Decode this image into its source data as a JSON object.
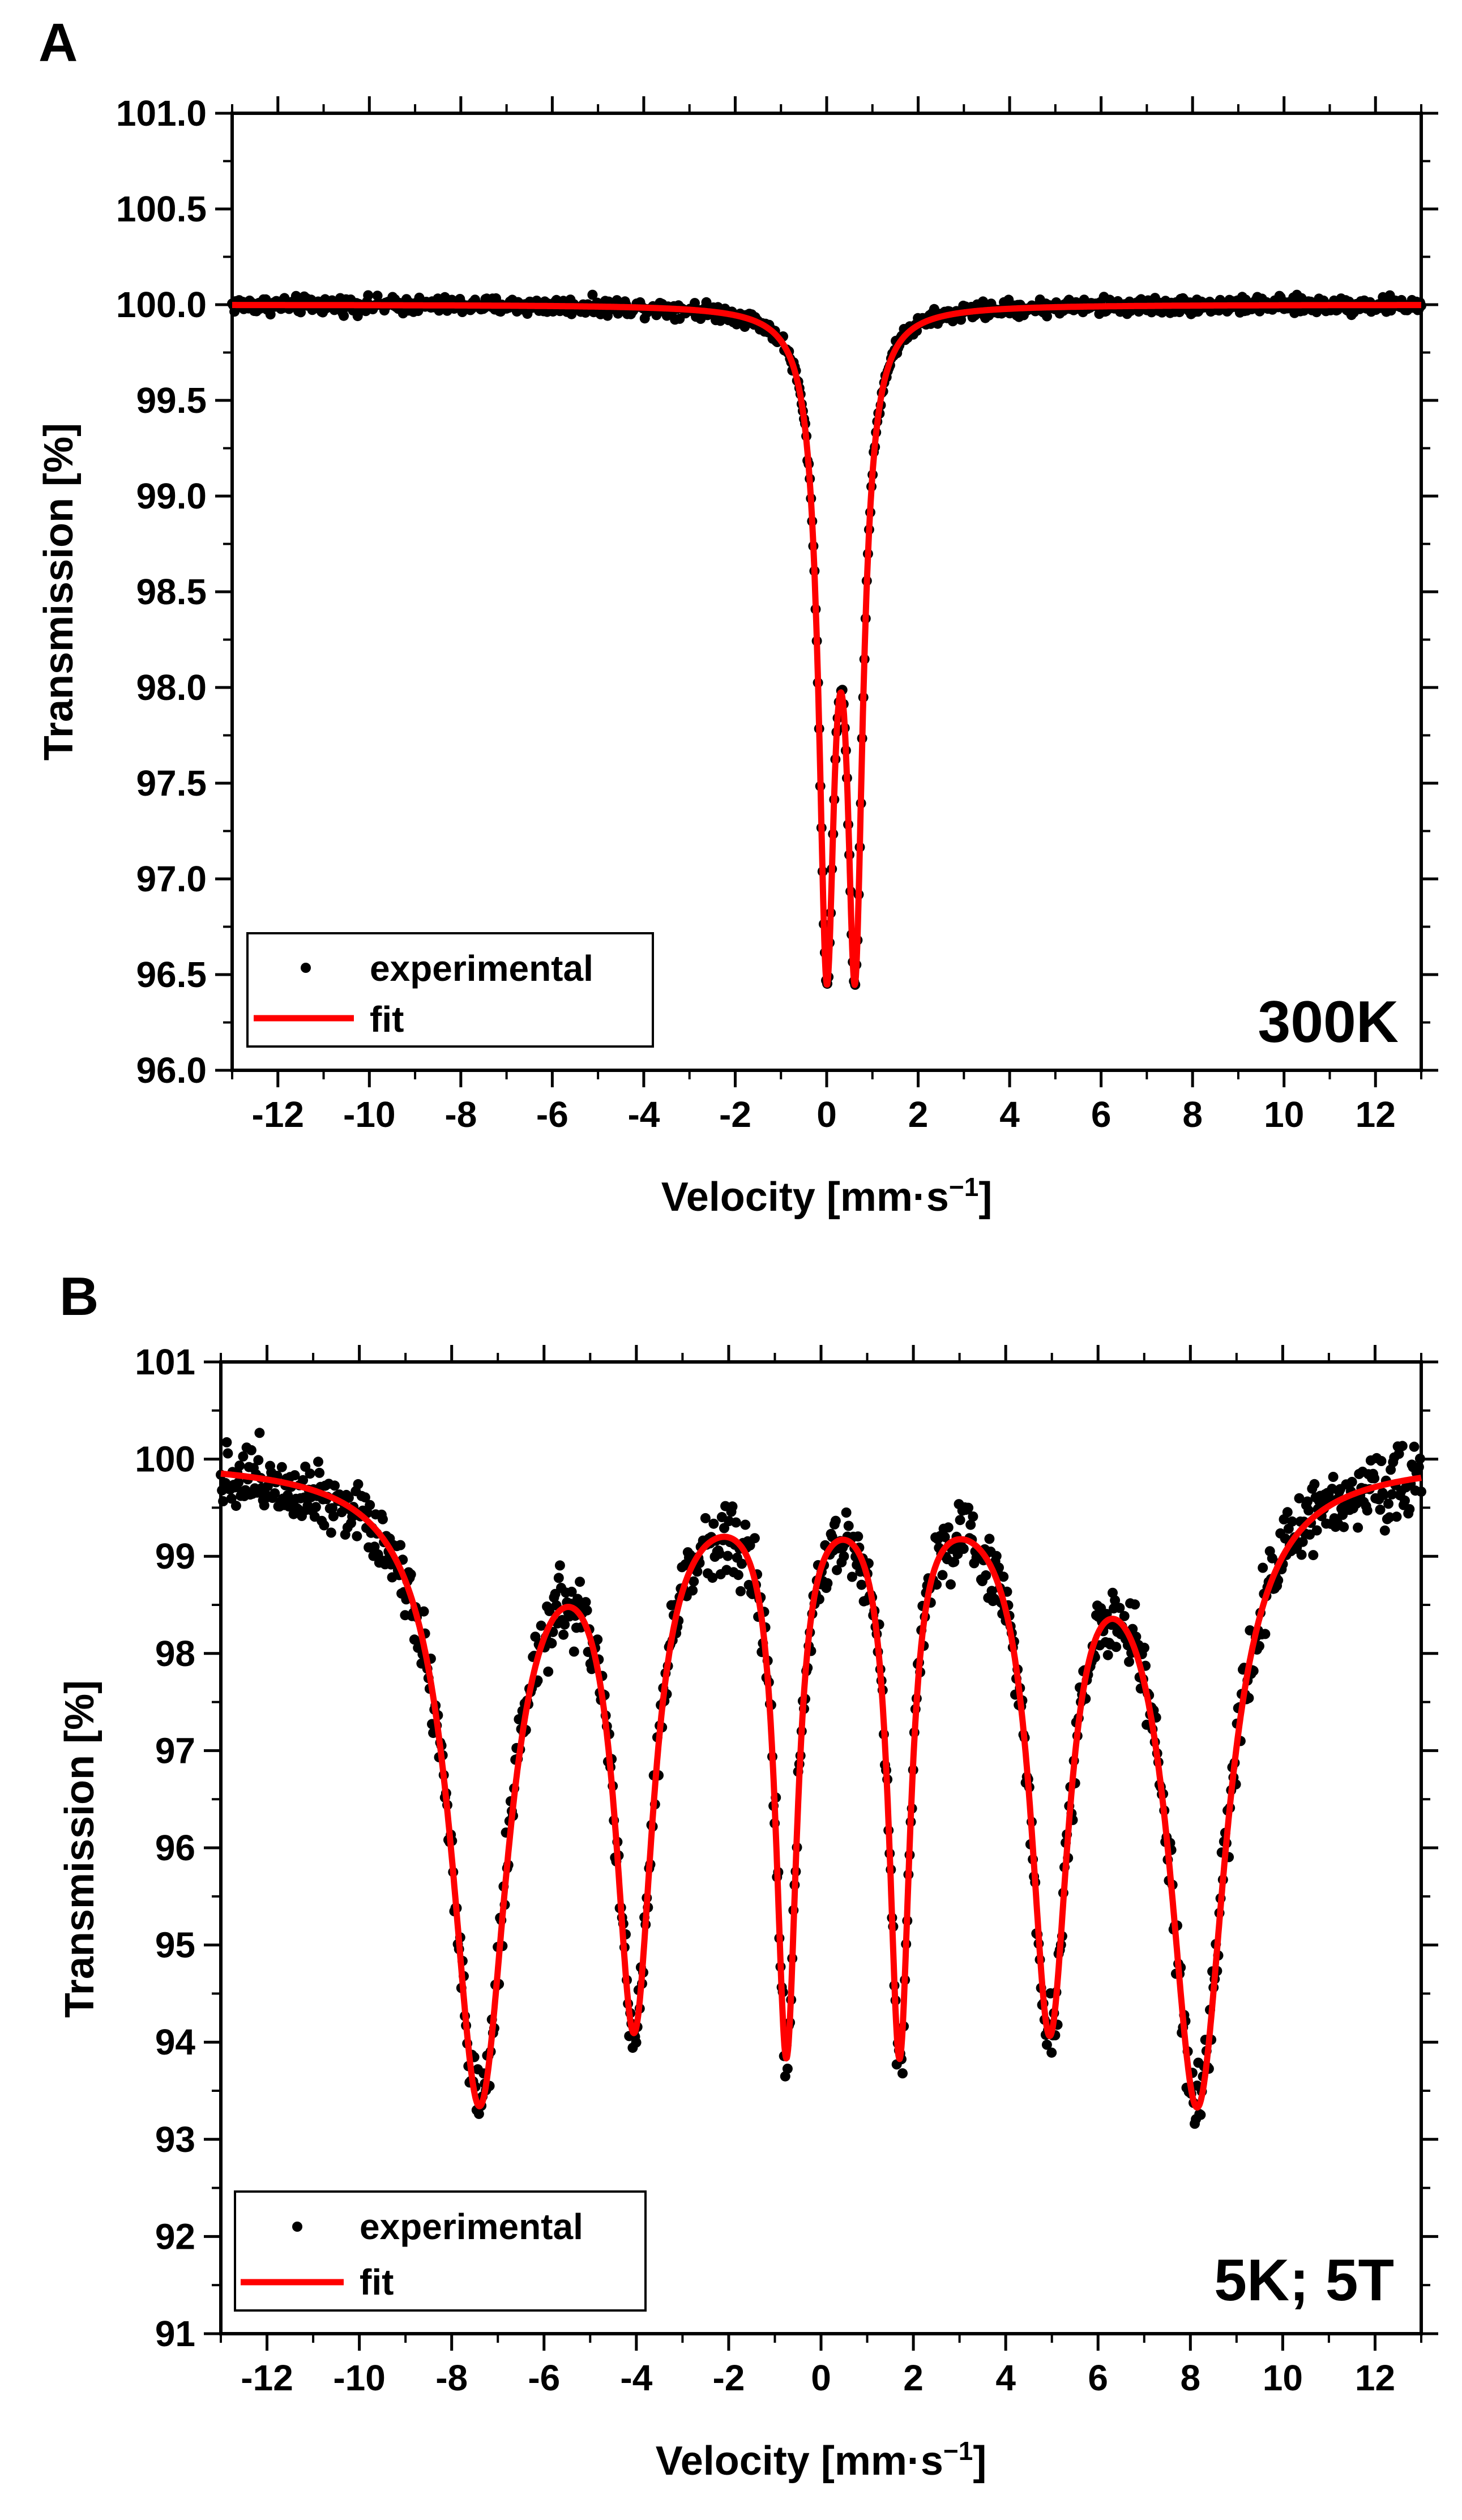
{
  "chart_data": [
    {
      "type": "scatter",
      "panel": "A",
      "annotation": "300K",
      "xlabel": "Velocity [mm·s",
      "xlabel_sup": "−1",
      "xlabel_close": "]",
      "ylabel": "Transmission [%]",
      "xlim": [
        -13,
        13
      ],
      "ylim": [
        96.0,
        101.0
      ],
      "xticks": [
        -12,
        -10,
        -8,
        -6,
        -4,
        -2,
        0,
        2,
        4,
        6,
        8,
        10,
        12
      ],
      "yticks": [
        96.0,
        96.5,
        97.0,
        97.5,
        98.0,
        98.5,
        99.0,
        99.5,
        100.0,
        100.5,
        101.0
      ],
      "ytick_decimals": 1,
      "legend": {
        "position": "bottom-left",
        "entries": [
          "experimental",
          "fit"
        ]
      },
      "series": [
        {
          "name": "experimental",
          "style": "points",
          "color": "#000000",
          "note": "noisy points following fit"
        },
        {
          "name": "fit",
          "style": "line",
          "color": "#ff0000",
          "model": {
            "baseline": 100.0,
            "lines": [
              {
                "position": 0.0,
                "depth": 3.22,
                "hwhm": 0.21
              },
              {
                "position": 0.62,
                "depth": 3.22,
                "hwhm": 0.21
              }
            ]
          }
        }
      ],
      "noise_amplitude": 0.035
    },
    {
      "type": "scatter",
      "panel": "B",
      "annotation": "5K; 5T",
      "xlabel": "Velocity [mm·s",
      "xlabel_sup": "−1",
      "xlabel_close": "]",
      "ylabel": "Transmission [%]",
      "xlim": [
        -13,
        13
      ],
      "ylim": [
        91,
        101
      ],
      "xticks": [
        -12,
        -10,
        -8,
        -6,
        -4,
        -2,
        0,
        2,
        4,
        6,
        8,
        10,
        12
      ],
      "yticks": [
        91,
        92,
        93,
        94,
        95,
        96,
        97,
        98,
        99,
        100,
        101
      ],
      "ytick_decimals": 0,
      "legend": {
        "position": "bottom-left",
        "entries": [
          "experimental",
          "fit"
        ]
      },
      "series": [
        {
          "name": "experimental",
          "style": "points",
          "color": "#000000",
          "note": "noisy points following fit"
        },
        {
          "name": "fit",
          "style": "line",
          "color": "#ff0000",
          "model": {
            "baseline": 100.0,
            "lines": [
              {
                "position": -7.4,
                "depth": 6.5,
                "hwhm": 0.75
              },
              {
                "position": -4.05,
                "depth": 5.5,
                "hwhm": 0.5
              },
              {
                "position": -0.75,
                "depth": 5.8,
                "hwhm": 0.28
              },
              {
                "position": 1.7,
                "depth": 5.8,
                "hwhm": 0.28
              },
              {
                "position": 4.95,
                "depth": 5.5,
                "hwhm": 0.5
              },
              {
                "position": 8.15,
                "depth": 6.5,
                "hwhm": 0.75
              }
            ]
          }
        }
      ],
      "noise_amplitude": 0.3
    }
  ]
}
